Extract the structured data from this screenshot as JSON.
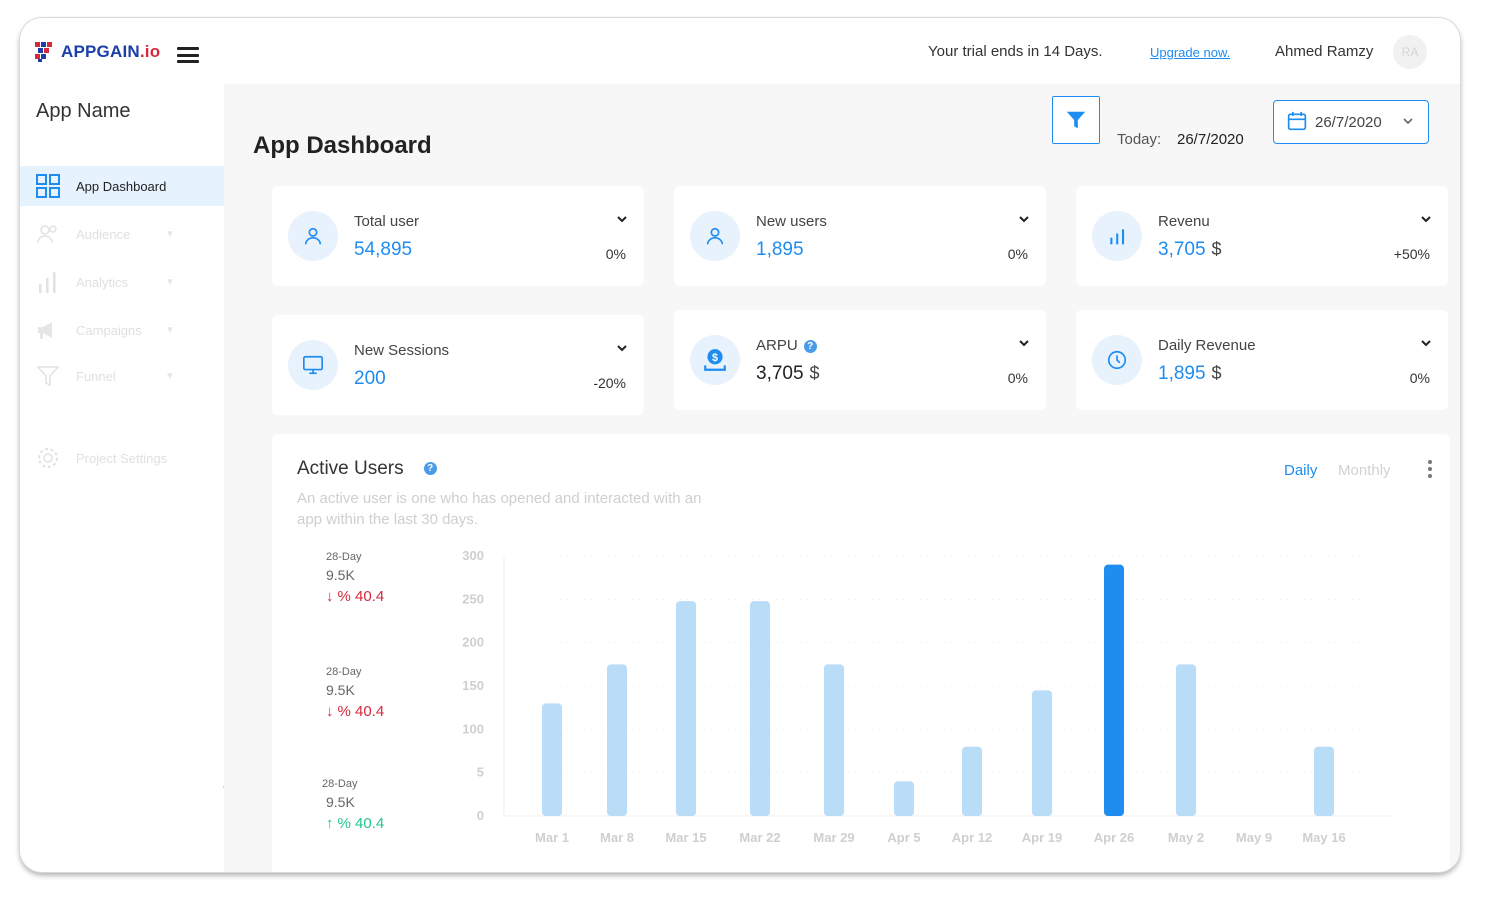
{
  "header": {
    "logo": {
      "brand": "APPGAIN",
      "suffix": ".io"
    },
    "trial_text": "Your trial ends in 14 Days.",
    "upgrade_label": "Upgrade now.",
    "user_name": "Ahmed Ramzy",
    "avatar_initials": "RA"
  },
  "sidebar": {
    "app_name": "App Name",
    "items": [
      {
        "label": "App Dashboard",
        "icon": "grid-icon",
        "active": true
      },
      {
        "label": "Audience",
        "icon": "users-icon"
      },
      {
        "label": "Analytics",
        "icon": "bar-chart-icon"
      },
      {
        "label": "Campaigns",
        "icon": "megaphone-icon"
      },
      {
        "label": "Funnel",
        "icon": "funnel-icon"
      },
      {
        "label": "Project Settings",
        "icon": "gear-icon"
      }
    ]
  },
  "toolbar": {
    "page_title": "App Dashboard",
    "today_label": "Today:",
    "today_value": "26/7/2020",
    "date_value": "26/7/2020"
  },
  "cards": [
    {
      "title": "Total user",
      "value": "54,895",
      "unit": "",
      "pct": "0%",
      "icon": "user-icon"
    },
    {
      "title": "New users",
      "value": "1,895",
      "unit": "",
      "pct": "0%",
      "icon": "user-icon"
    },
    {
      "title": "Revenu",
      "value": "3,705",
      "unit": "$",
      "pct": "+50%",
      "icon": "bar-chart-icon"
    },
    {
      "title": "New Sessions",
      "value": "200",
      "unit": "",
      "pct": "-20%",
      "icon": "monitor-icon"
    },
    {
      "title": "ARPU",
      "value": "3,705",
      "unit": "$",
      "pct": "0%",
      "icon": "money-icon"
    },
    {
      "title": "Daily Revenue",
      "value": "1,895",
      "unit": "$",
      "pct": "0%",
      "icon": "clock-icon"
    }
  ],
  "active_users": {
    "title": "Active Users",
    "description": "An active user is one who has opened and interacted with an app within the last 30 days.",
    "tabs": [
      "Daily",
      "Monthly"
    ],
    "stats": [
      {
        "period": "28-Day",
        "value": "9.5K",
        "change": "% 40.4",
        "direction": "down"
      },
      {
        "period": "28-Day",
        "value": "9.5K",
        "change": "% 40.4",
        "direction": "down"
      },
      {
        "period": "28-Day",
        "value": "9.5K",
        "change": "% 40.4",
        "direction": "up"
      }
    ]
  },
  "colors": {
    "accent": "#1f8cf0",
    "bar_light": "#b9dcf7",
    "bar_highlight": "#1f8cf0",
    "negative": "#d6283b",
    "positive": "#22c58b"
  },
  "chart_data": {
    "type": "bar",
    "categories": [
      "Mar 1",
      "Mar 8",
      "Mar 15",
      "Mar 22",
      "Mar 29",
      "Apr 5",
      "Apr 12",
      "Apr 19",
      "Apr 26",
      "May 2",
      "May 9",
      "May 16"
    ],
    "values": [
      130,
      175,
      248,
      248,
      175,
      40,
      80,
      145,
      290,
      175,
      0,
      80
    ],
    "highlight_index": 8,
    "y_ticks": [
      "0",
      "5",
      "100",
      "150",
      "200",
      "250",
      "300"
    ],
    "ylim": [
      0,
      300
    ],
    "grid": true
  }
}
